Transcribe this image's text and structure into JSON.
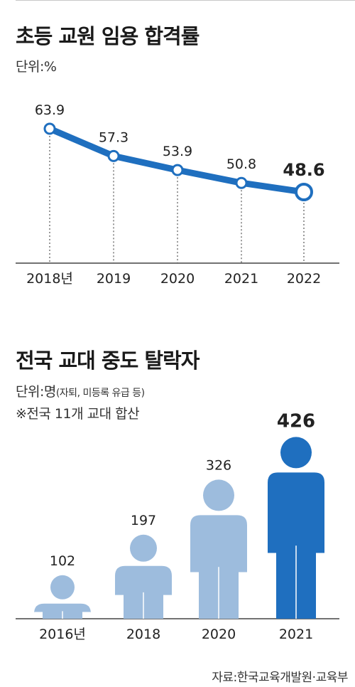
{
  "chart1": {
    "title": "초등 교원 임용 합격률",
    "unit": "단위:%",
    "chart_data": {
      "type": "line",
      "categories": [
        "2018년",
        "2019",
        "2020",
        "2021",
        "2022"
      ],
      "values": [
        63.9,
        57.3,
        53.9,
        50.8,
        48.6
      ],
      "value_labels": [
        "63.9",
        "57.3",
        "53.9",
        "50.8",
        "48.6"
      ],
      "title": "초등 교원 임용 합격률",
      "ylabel": "단위:%",
      "highlight_last": true,
      "colors": {
        "line": "#1f6fbf",
        "axis": "#555555"
      }
    }
  },
  "chart2": {
    "title": "전국 교대 중도 탈락자",
    "unit_main": "단위:명",
    "unit_sub": "(자퇴, 미등록 유급 등)",
    "footnote": "※전국 11개 교대 합산",
    "chart_data": {
      "type": "bar",
      "categories": [
        "2016년",
        "2018",
        "2020",
        "2021"
      ],
      "values": [
        102,
        197,
        326,
        426
      ],
      "value_labels": [
        "102",
        "197",
        "326",
        "426"
      ],
      "title": "전국 교대 중도 탈락자",
      "ylabel": "단위:명",
      "highlight_last": true,
      "colors": {
        "bar": "#9dbcdd",
        "highlight": "#1f6fbf",
        "axis": "#555555"
      }
    }
  },
  "source": "자료:한국교육개발원·교육부"
}
